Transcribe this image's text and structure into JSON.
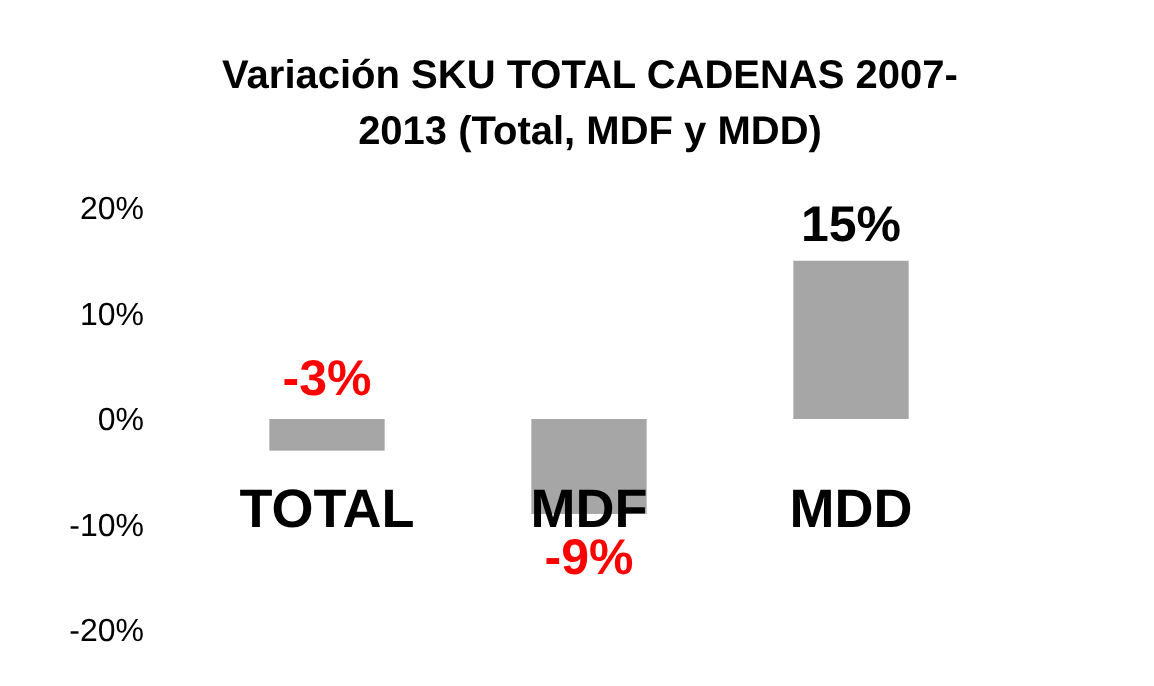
{
  "chart_data": {
    "type": "bar",
    "title": "Variación SKU TOTAL CADENAS 2007-\n2013 (Total, MDF y MDD)",
    "categories": [
      "TOTAL",
      "MDF",
      "MDD"
    ],
    "values": [
      -3,
      -9,
      15
    ],
    "value_labels": [
      "-3%",
      "-9%",
      "15%"
    ],
    "color": "#a6a6a6",
    "ylim": [
      -20,
      20
    ],
    "yticks": [
      {
        "value": -20,
        "label": "-20%"
      },
      {
        "value": -10,
        "label": "-10%"
      },
      {
        "value": 0,
        "label": "0%"
      },
      {
        "value": 10,
        "label": "10%"
      },
      {
        "value": 20,
        "label": "20%"
      }
    ],
    "grid": false
  }
}
